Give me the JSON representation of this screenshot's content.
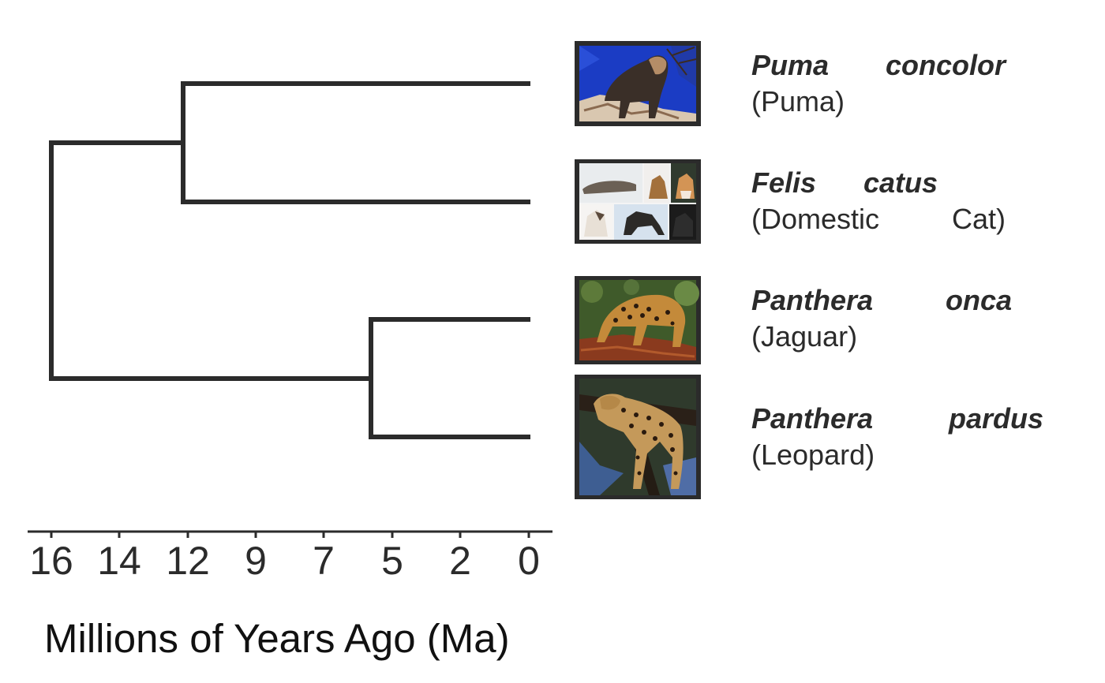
{
  "axis": {
    "title": "Millions of Years Ago (Ma)",
    "ticks": [
      "16",
      "14",
      "12",
      "9",
      "7",
      "5",
      "2",
      "0"
    ]
  },
  "taxa": [
    {
      "genus": "Puma",
      "species": "concolor",
      "common_open": "(Puma)",
      "common_close": "",
      "photo_icon": "puma-photo"
    },
    {
      "genus": "Felis",
      "species": "catus",
      "common_open": "(Domestic",
      "common_close": "Cat)",
      "photo_icon": "domestic-cat-collage-photo"
    },
    {
      "genus": "Panthera",
      "species": "onca",
      "common_open": "(Jaguar)",
      "common_close": "",
      "photo_icon": "jaguar-photo"
    },
    {
      "genus": "Panthera",
      "species": "pardus",
      "common_open": "(Leopard)",
      "common_close": "",
      "photo_icon": "leopard-photo"
    }
  ],
  "tree": {
    "tip_age": 0,
    "nodes": [
      {
        "id": "felis-puma",
        "age": 12.2,
        "children": [
          "Puma concolor",
          "Felis catus"
        ]
      },
      {
        "id": "panthera",
        "age": 5.7,
        "children": [
          "Panthera onca",
          "Panthera pardus"
        ]
      },
      {
        "id": "root",
        "age": 16,
        "children": [
          "felis-puma",
          "panthera"
        ]
      }
    ]
  },
  "colors": {
    "line": "#2b2b2b",
    "frame": "#2b2b2b"
  }
}
